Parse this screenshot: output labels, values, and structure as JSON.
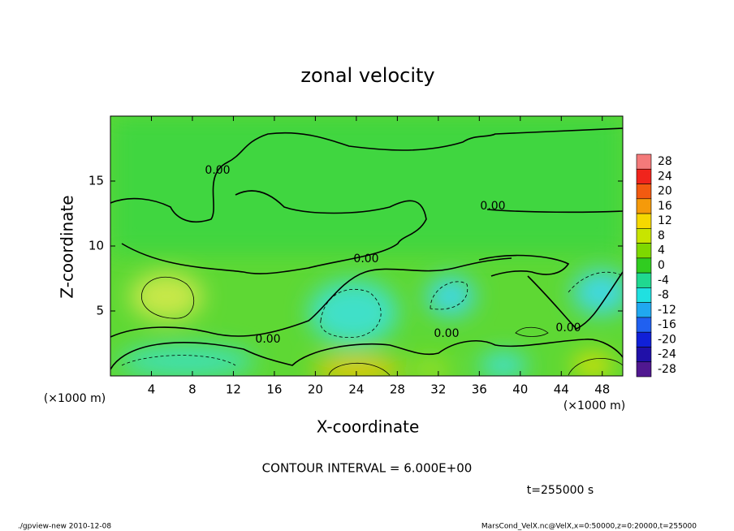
{
  "chart_data": {
    "type": "contour",
    "title": "zonal velocity",
    "x_label": "X-coordinate",
    "y_label": "Z-coordinate",
    "x_unit_left": "(×1000 m)",
    "x_unit_right": "(×1000 m)",
    "xlim": [
      0,
      50
    ],
    "xticks": [
      4,
      8,
      12,
      16,
      20,
      24,
      28,
      32,
      36,
      40,
      44,
      48
    ],
    "ylim": [
      0,
      20
    ],
    "yticks": [
      5,
      10,
      15
    ],
    "colorbar": {
      "levels": [
        28,
        24,
        20,
        16,
        12,
        8,
        4,
        0,
        -4,
        -8,
        -12,
        -16,
        -20,
        -24,
        -28
      ],
      "colors": [
        "#f47a7a",
        "#f0241c",
        "#f25a10",
        "#f59a0a",
        "#f5d800",
        "#c8e400",
        "#7ed800",
        "#30cc20",
        "#20d890",
        "#20e0e0",
        "#20a8f0",
        "#2060f0",
        "#1020d8",
        "#2010a8",
        "#501890"
      ]
    },
    "contour_labels": {
      "values": [
        0,
        0,
        0,
        0,
        0,
        0
      ],
      "value_labels": [
        "0.00",
        "0.00",
        "0.00",
        "0.00",
        "0.00",
        "0.00"
      ]
    },
    "annotation": "CONTOUR INTERVAL = 6.000E+00",
    "time_label": "t=255000 s",
    "footer_left": "./gpview-new  2010-12-08",
    "footer_right": "MarsCond_VelX.nc@VelX,x=0:50000,z=0:20000,t=255000"
  }
}
